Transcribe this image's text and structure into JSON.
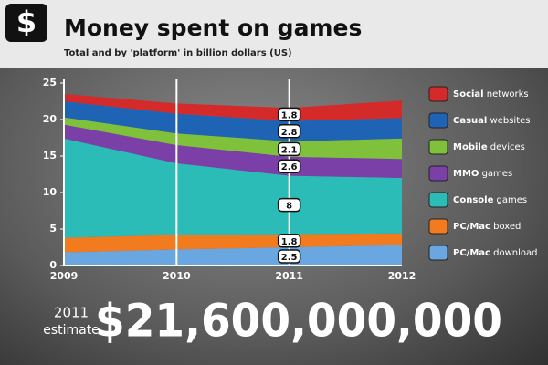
{
  "chart_data": {
    "type": "stacked_area",
    "icon": "$",
    "title": "Money spent on games",
    "subtitle": "Total and by 'platform' in billion dollars (US)",
    "categories": [
      "2009",
      "2010",
      "2011",
      "2012"
    ],
    "series": [
      {
        "name": "PC/Mac download",
        "color": "#6aa7e0",
        "values": [
          1.8,
          2.2,
          2.5,
          2.8
        ]
      },
      {
        "name": "PC/Mac boxed",
        "color": "#f27a1f",
        "values": [
          2.0,
          2.0,
          1.8,
          1.6
        ]
      },
      {
        "name": "Console games",
        "color": "#2bbcb8",
        "values": [
          13.6,
          9.8,
          8.0,
          7.6
        ]
      },
      {
        "name": "MMO games",
        "color": "#7b3fa8",
        "values": [
          1.9,
          2.5,
          2.6,
          2.6
        ]
      },
      {
        "name": "Mobile devices",
        "color": "#7fc13a",
        "values": [
          1.0,
          1.6,
          2.1,
          2.8
        ]
      },
      {
        "name": "Casual websites",
        "color": "#1f63b5",
        "values": [
          2.2,
          2.7,
          2.8,
          2.8
        ]
      },
      {
        "name": "Social networks",
        "color": "#d42a2a",
        "values": [
          1.0,
          1.4,
          1.8,
          2.4
        ]
      }
    ],
    "ylim": [
      0,
      25
    ],
    "yticks": [
      0,
      5,
      10,
      15,
      20,
      25
    ],
    "total": {
      "year": "2011",
      "note": "estimate",
      "label": "$21,600,000,000"
    }
  }
}
